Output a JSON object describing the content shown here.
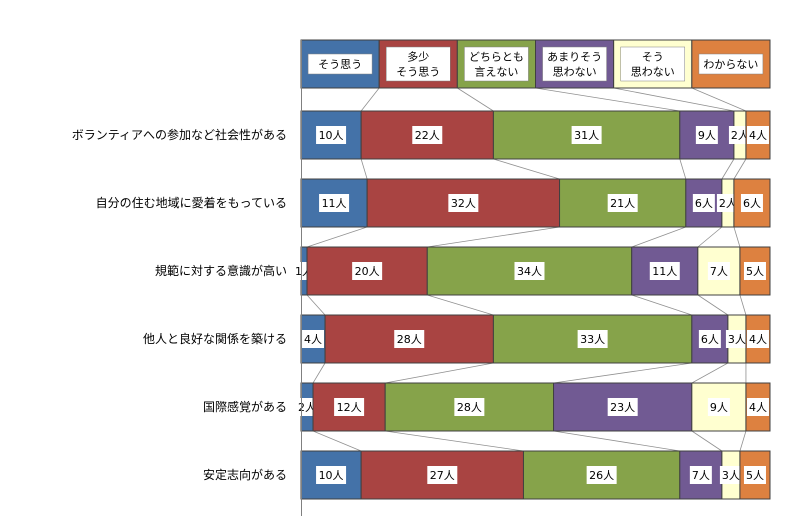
{
  "chart_data": {
    "type": "bar",
    "orientation": "horizontal",
    "stacked": "percent",
    "title": "",
    "xlabel": "",
    "ylabel": "",
    "legend": {
      "position": "top",
      "entries": [
        {
          "lines": [
            "そう思う"
          ],
          "color": "#4472A8"
        },
        {
          "lines": [
            "多少",
            "そう思う"
          ],
          "color": "#A94442"
        },
        {
          "lines": [
            "どちらとも",
            "言えない"
          ],
          "color": "#86A34A"
        },
        {
          "lines": [
            "あまりそう",
            "思わない"
          ],
          "color": "#715A93"
        },
        {
          "lines": [
            "そう",
            "思わない"
          ],
          "color": "#FFFFD0"
        },
        {
          "lines": [
            "わからない"
          ],
          "color": "#DD8140"
        }
      ]
    },
    "series_names": [
      "そう思う",
      "多少そう思う",
      "どちらとも言えない",
      "あまりそう思わない",
      "そう思わない",
      "わからない"
    ],
    "value_suffix": "人",
    "categories": [
      "ボランティアへの参加など社会性がある",
      "自分の住む地域に愛着をもっている",
      "規範に対する意識が高い",
      "他人と良好な関係を築ける",
      "国際感覚がある",
      "安定志向がある"
    ],
    "values": [
      [
        10,
        22,
        31,
        9,
        2,
        4
      ],
      [
        11,
        32,
        21,
        6,
        2,
        6
      ],
      [
        1,
        20,
        34,
        11,
        7,
        5
      ],
      [
        4,
        28,
        33,
        6,
        3,
        4
      ],
      [
        2,
        12,
        28,
        23,
        9,
        4
      ],
      [
        10,
        27,
        26,
        7,
        3,
        5
      ]
    ],
    "grid": false,
    "series_lines": true
  }
}
